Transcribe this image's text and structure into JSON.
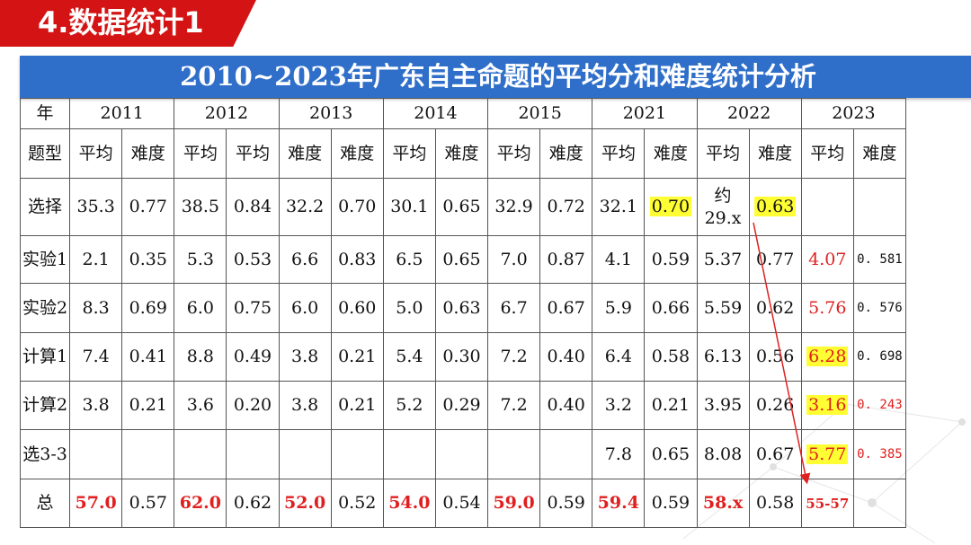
{
  "slide_title": "4.数据统计1",
  "header": "2010~2023年广东自主命题的平均分和难度统计分析",
  "table": {
    "corner": "年",
    "years": [
      "2011",
      "2012",
      "2013",
      "2014",
      "2015",
      "2021",
      "2022",
      "2023"
    ],
    "type_label": "题型",
    "subheaders": [
      "平均",
      "难度",
      "平均",
      "平均",
      "难度",
      "难度",
      "平均",
      "难度",
      "平均",
      "难度",
      "平均",
      "难度",
      "平均",
      "难度",
      "平均",
      "难度"
    ],
    "rows": [
      {
        "label": "选择",
        "cells": [
          "35.3",
          "0.77",
          "38.5",
          "0.84",
          "32.2",
          "0.70",
          "30.1",
          "0.65",
          "32.9",
          "0.72",
          "32.1",
          "0.70",
          "约29.x",
          "0.63",
          "",
          ""
        ]
      },
      {
        "label": "实验1",
        "cells": [
          "2.1",
          "0.35",
          "5.3",
          "0.53",
          "6.6",
          "0.83",
          "6.5",
          "0.65",
          "7.0",
          "0.87",
          "4.1",
          "0.59",
          "5.37",
          "0.77",
          "4.07",
          "0. 581"
        ]
      },
      {
        "label": "实验2",
        "cells": [
          "8.3",
          "0.69",
          "6.0",
          "0.75",
          "6.0",
          "0.60",
          "5.0",
          "0.63",
          "6.7",
          "0.67",
          "5.9",
          "0.66",
          "5.59",
          "0.62",
          "5.76",
          "0. 576"
        ]
      },
      {
        "label": "计算1",
        "cells": [
          "7.4",
          "0.41",
          "8.8",
          "0.49",
          "3.8",
          "0.21",
          "5.4",
          "0.30",
          "7.2",
          "0.40",
          "6.4",
          "0.58",
          "6.13",
          "0.56",
          "6.28",
          "0. 698"
        ]
      },
      {
        "label": "计算2",
        "cells": [
          "3.8",
          "0.21",
          "3.6",
          "0.20",
          "3.8",
          "0.21",
          "5.2",
          "0.29",
          "7.2",
          "0.40",
          "3.2",
          "0.21",
          "3.95",
          "0.26",
          "3.16",
          "0. 243"
        ]
      },
      {
        "label": "选3-3",
        "cells": [
          "",
          "",
          "",
          "",
          "",
          "",
          "",
          "",
          "",
          "",
          "7.8",
          "0.65",
          "8.08",
          "0.67",
          "5.77",
          "0. 385"
        ]
      },
      {
        "label": "总",
        "cells": [
          "57.0",
          "0.57",
          "62.0",
          "0.62",
          "52.0",
          "0.52",
          "54.0",
          "0.54",
          "59.0",
          "0.59",
          "59.4",
          "0.59",
          "58.x",
          "0.58",
          "55-57",
          ""
        ]
      }
    ]
  },
  "colors": {
    "banner": "#d41414",
    "header": "#2f6fc9",
    "highlight": "#ffff33",
    "emphasis": "#e02020"
  }
}
